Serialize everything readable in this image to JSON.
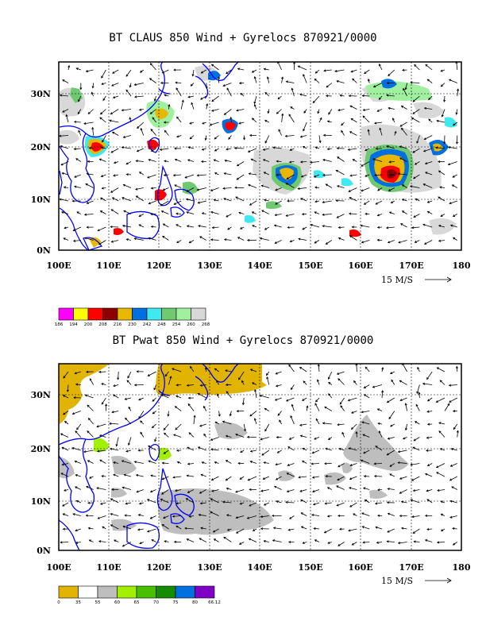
{
  "panels": [
    {
      "title": "BT CLAUS 850 Wind + Gyrelocs 870921/0000",
      "scale_label": "15 M/S",
      "x_ticks": [
        "100E",
        "110E",
        "120E",
        "130E",
        "140E",
        "150E",
        "160E",
        "170E",
        "180"
      ],
      "y_ticks": [
        "0N",
        "10N",
        "20N",
        "30N"
      ],
      "legend": {
        "colors": [
          "#ff00ff",
          "#ffff00",
          "#ff0000",
          "#8b0000",
          "#e8b800",
          "#0070e0",
          "#40e8f0",
          "#70c870",
          "#a0f0a0",
          "#d8d8d8"
        ],
        "labels": [
          "186",
          "194",
          "200",
          "208",
          "216",
          "230",
          "242",
          "248",
          "254",
          "260",
          "268"
        ]
      }
    },
    {
      "title": "BT Pwat 850 Wind + Gyrelocs 870921/0000",
      "scale_label": "15 M/S",
      "x_ticks": [
        "100E",
        "110E",
        "120E",
        "130E",
        "140E",
        "150E",
        "160E",
        "170E",
        "180"
      ],
      "y_ticks": [
        "0N",
        "10N",
        "20N",
        "30N"
      ],
      "legend": {
        "colors": [
          "#e0b400",
          "#ffffff",
          "#bebebe",
          "#a0f000",
          "#48c000",
          "#148c00",
          "#0070e0",
          "#8000c8"
        ],
        "labels": [
          "0",
          "35",
          "55",
          "60",
          "65",
          "70",
          "75",
          "80",
          "66.12"
        ]
      }
    }
  ]
}
